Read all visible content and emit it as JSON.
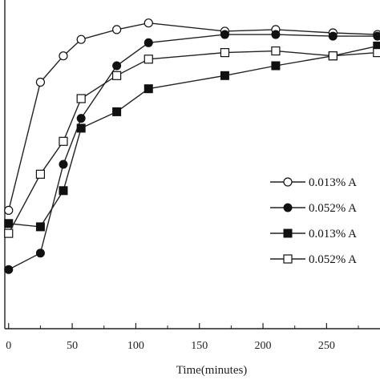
{
  "chart_data": {
    "type": "line",
    "xlabel": "Time(minutes)",
    "ylabel": "",
    "xlim": [
      -3,
      292
    ],
    "ylim": [
      0,
      100
    ],
    "x_ticks": [
      0,
      50,
      100,
      150,
      200,
      250
    ],
    "x_tick_labels": [
      "0",
      "50",
      "100",
      "150",
      "200",
      "250"
    ],
    "grid": false,
    "legend_position": "right",
    "series": [
      {
        "name": "0.013% A",
        "marker": "open-circle",
        "x": [
          0,
          25,
          43,
          57,
          85,
          110,
          170,
          210,
          255,
          290
        ],
        "y": [
          36,
          75,
          83,
          88,
          91,
          93,
          90.5,
          91,
          90,
          89.5
        ]
      },
      {
        "name": "0.052% A",
        "marker": "filled-circle",
        "x": [
          0,
          25,
          43,
          57,
          85,
          110,
          170,
          210,
          255,
          290
        ],
        "y": [
          18,
          23,
          50,
          64,
          80,
          87,
          89.5,
          89.5,
          89,
          89
        ]
      },
      {
        "name": "0.013% A",
        "marker": "filled-square",
        "x": [
          0,
          25,
          43,
          57,
          85,
          110,
          170,
          210,
          255,
          290
        ],
        "y": [
          32,
          31,
          42,
          61,
          66,
          73,
          77,
          80,
          83,
          86
        ]
      },
      {
        "name": "0.052% A",
        "marker": "open-square",
        "x": [
          0,
          25,
          43,
          57,
          85,
          110,
          170,
          210,
          255,
          290
        ],
        "y": [
          29,
          47,
          57,
          70,
          77,
          82,
          84,
          84.5,
          83,
          84
        ]
      }
    ]
  }
}
